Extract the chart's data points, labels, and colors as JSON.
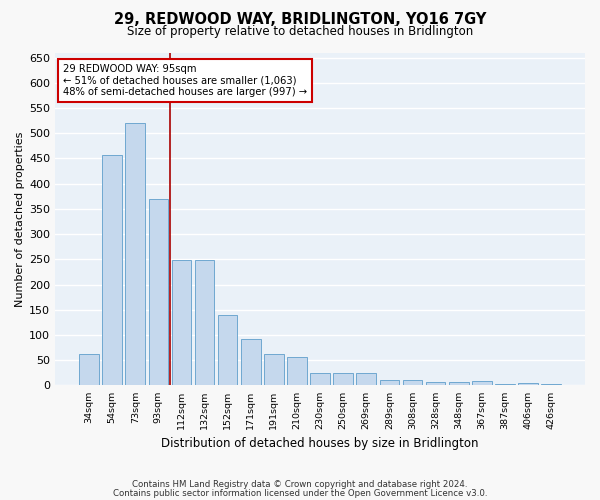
{
  "title": "29, REDWOOD WAY, BRIDLINGTON, YO16 7GY",
  "subtitle": "Size of property relative to detached houses in Bridlington",
  "xlabel": "Distribution of detached houses by size in Bridlington",
  "ylabel": "Number of detached properties",
  "footnote1": "Contains HM Land Registry data © Crown copyright and database right 2024.",
  "footnote2": "Contains public sector information licensed under the Open Government Licence v3.0.",
  "categories": [
    "34sqm",
    "54sqm",
    "73sqm",
    "93sqm",
    "112sqm",
    "132sqm",
    "152sqm",
    "171sqm",
    "191sqm",
    "210sqm",
    "230sqm",
    "250sqm",
    "269sqm",
    "289sqm",
    "308sqm",
    "328sqm",
    "348sqm",
    "367sqm",
    "387sqm",
    "406sqm",
    "426sqm"
  ],
  "values": [
    62,
    457,
    520,
    370,
    248,
    248,
    140,
    92,
    62,
    57,
    25,
    25,
    25,
    11,
    11,
    6,
    6,
    9,
    3,
    5,
    3
  ],
  "bar_color": "#c5d8ed",
  "bar_edge_color": "#6fa8d0",
  "background_color": "#eaf1f8",
  "grid_color": "#ffffff",
  "annotation_box_color": "#ffffff",
  "annotation_box_edge": "#cc0000",
  "vline_color": "#aa0000",
  "vline_position": 3.5,
  "annotation_text1": "29 REDWOOD WAY: 95sqm",
  "annotation_text2": "← 51% of detached houses are smaller (1,063)",
  "annotation_text3": "48% of semi-detached houses are larger (997) →",
  "ylim": [
    0,
    660
  ],
  "yticks": [
    0,
    50,
    100,
    150,
    200,
    250,
    300,
    350,
    400,
    450,
    500,
    550,
    600,
    650
  ],
  "fig_width": 6.0,
  "fig_height": 5.0,
  "fig_bg": "#f8f8f8"
}
